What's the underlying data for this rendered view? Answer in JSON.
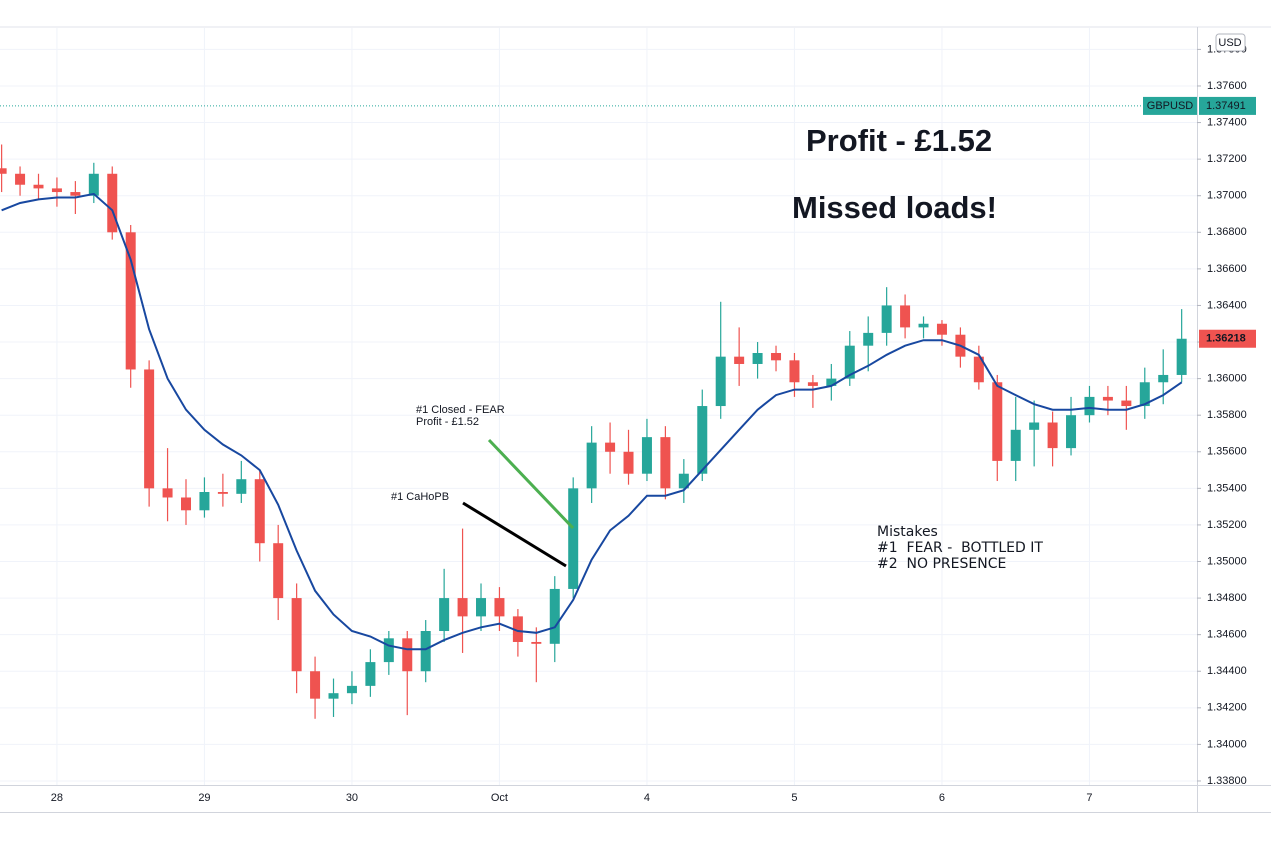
{
  "chart_data": {
    "type": "candlestick",
    "x": [
      -0.375,
      -0.25,
      -0.125,
      0,
      0.125,
      0.25,
      0.375,
      0.5,
      0.625,
      0.75,
      0.875,
      1,
      1.125,
      1.25,
      1.375,
      1.5,
      1.625,
      1.75,
      1.875,
      2,
      2.125,
      2.25,
      2.375,
      2.5,
      2.625,
      2.75,
      2.875,
      3,
      3.125,
      3.25,
      3.375,
      3.5,
      3.625,
      3.75,
      3.875,
      4,
      4.125,
      4.25,
      4.375,
      4.5,
      4.625,
      4.75,
      4.875,
      5,
      5.125,
      5.25,
      5.375,
      5.5,
      5.625,
      5.75,
      5.875,
      6,
      6.125,
      6.25,
      6.375,
      6.5,
      6.625,
      6.75,
      6.875,
      7,
      7.125,
      7.25,
      7.375,
      7.5,
      7.625
    ],
    "xlim": [
      -0.386,
      7.729
    ],
    "xticks": [
      {
        "value": 0,
        "label": "28"
      },
      {
        "value": 1,
        "label": "29"
      },
      {
        "value": 2,
        "label": "30"
      },
      {
        "value": 3,
        "label": "Oct"
      },
      {
        "value": 4,
        "label": "4"
      },
      {
        "value": 5,
        "label": "5"
      },
      {
        "value": 6,
        "label": "6"
      },
      {
        "value": 7,
        "label": "7"
      }
    ],
    "candles": {
      "open": [
        1.3715,
        1.3712,
        1.3706,
        1.3704,
        1.3702,
        1.37,
        1.3712,
        1.368,
        1.3605,
        1.354,
        1.3535,
        1.3528,
        1.3538,
        1.3537,
        1.3545,
        1.351,
        1.348,
        1.344,
        1.3425,
        1.3428,
        1.3432,
        1.3445,
        1.3458,
        1.344,
        1.3462,
        1.348,
        1.347,
        1.348,
        1.347,
        1.3456,
        1.3455,
        1.3485,
        1.354,
        1.3565,
        1.356,
        1.3548,
        1.3568,
        1.354,
        1.3548,
        1.3585,
        1.3612,
        1.3608,
        1.3614,
        1.361,
        1.3598,
        1.3596,
        1.36,
        1.3618,
        1.3625,
        1.364,
        1.3628,
        1.363,
        1.3624,
        1.3612,
        1.3598,
        1.3555,
        1.3572,
        1.3576,
        1.3562,
        1.358,
        1.359,
        1.3588,
        1.3585,
        1.3598,
        1.3602
      ],
      "high": [
        1.3728,
        1.3716,
        1.3712,
        1.371,
        1.3708,
        1.3718,
        1.3716,
        1.3684,
        1.361,
        1.3562,
        1.3545,
        1.3546,
        1.3548,
        1.3555,
        1.355,
        1.352,
        1.3488,
        1.3448,
        1.3436,
        1.344,
        1.3452,
        1.3462,
        1.3462,
        1.3468,
        1.3496,
        1.3518,
        1.3488,
        1.3486,
        1.3474,
        1.3464,
        1.3492,
        1.3546,
        1.3574,
        1.3576,
        1.3572,
        1.3578,
        1.3574,
        1.3556,
        1.3594,
        1.3642,
        1.3628,
        1.362,
        1.3618,
        1.3614,
        1.3602,
        1.3608,
        1.3626,
        1.3634,
        1.365,
        1.3646,
        1.3634,
        1.3632,
        1.3628,
        1.3618,
        1.3602,
        1.359,
        1.3588,
        1.3582,
        1.359,
        1.3596,
        1.3596,
        1.3596,
        1.3606,
        1.3616,
        1.3638
      ],
      "low": [
        1.3702,
        1.37,
        1.3698,
        1.3694,
        1.369,
        1.3696,
        1.3676,
        1.3595,
        1.353,
        1.3522,
        1.352,
        1.3524,
        1.353,
        1.3532,
        1.35,
        1.3468,
        1.3428,
        1.3414,
        1.3415,
        1.3422,
        1.3426,
        1.3438,
        1.3416,
        1.3434,
        1.3456,
        1.345,
        1.3462,
        1.3462,
        1.3448,
        1.3434,
        1.3445,
        1.348,
        1.3532,
        1.3548,
        1.3542,
        1.3544,
        1.3534,
        1.3532,
        1.3544,
        1.3578,
        1.3596,
        1.36,
        1.3604,
        1.359,
        1.3584,
        1.3588,
        1.3596,
        1.3604,
        1.3618,
        1.3622,
        1.3622,
        1.3618,
        1.3606,
        1.3594,
        1.3544,
        1.3544,
        1.3552,
        1.3552,
        1.3558,
        1.3576,
        1.358,
        1.3572,
        1.3578,
        1.3586,
        1.3598
      ],
      "close": [
        1.3712,
        1.3706,
        1.3704,
        1.3702,
        1.37,
        1.3712,
        1.368,
        1.3605,
        1.354,
        1.3535,
        1.3528,
        1.3538,
        1.3537,
        1.3545,
        1.351,
        1.348,
        1.344,
        1.3425,
        1.3428,
        1.3432,
        1.3445,
        1.3458,
        1.344,
        1.3462,
        1.348,
        1.347,
        1.348,
        1.347,
        1.3456,
        1.3455,
        1.3485,
        1.354,
        1.3565,
        1.356,
        1.3548,
        1.3568,
        1.354,
        1.3548,
        1.3585,
        1.3612,
        1.3608,
        1.3614,
        1.361,
        1.3598,
        1.3596,
        1.36,
        1.3618,
        1.3625,
        1.364,
        1.3628,
        1.363,
        1.3624,
        1.3612,
        1.3598,
        1.3555,
        1.3572,
        1.3576,
        1.3562,
        1.358,
        1.359,
        1.3588,
        1.3585,
        1.3598,
        1.3602,
        1.36218
      ],
      "up_color": "#26a69a",
      "down_color": "#ef5350"
    },
    "moving_average": {
      "color": "#1848a0",
      "values": [
        1.3692,
        1.3696,
        1.3698,
        1.3699,
        1.3699,
        1.3701,
        1.3692,
        1.3665,
        1.3627,
        1.36,
        1.3583,
        1.3572,
        1.3564,
        1.3558,
        1.355,
        1.3531,
        1.3506,
        1.3484,
        1.3471,
        1.3462,
        1.3459,
        1.3454,
        1.3452,
        1.3452,
        1.3457,
        1.3461,
        1.3464,
        1.3466,
        1.3462,
        1.3461,
        1.3464,
        1.3479,
        1.3501,
        1.3517,
        1.3525,
        1.3536,
        1.3536,
        1.3539,
        1.355,
        1.3561,
        1.3572,
        1.3583,
        1.3591,
        1.3594,
        1.3594,
        1.3596,
        1.3602,
        1.3607,
        1.3613,
        1.3618,
        1.3621,
        1.3621,
        1.3618,
        1.3613,
        1.3596,
        1.3591,
        1.3586,
        1.3583,
        1.3583,
        1.3584,
        1.3583,
        1.3583,
        1.3586,
        1.3591,
        1.3598
      ]
    },
    "reference_line": {
      "label": "GBPUSD",
      "value": 1.37491,
      "color": "#26a69a"
    },
    "currency": "USD",
    "ylim": [
      1.33778,
      1.37917
    ],
    "yticks": [
      {
        "value": 1.338,
        "label": "1.33800"
      },
      {
        "value": 1.34,
        "label": "1.34000"
      },
      {
        "value": 1.342,
        "label": "1.34200"
      },
      {
        "value": 1.344,
        "label": "1.34400"
      },
      {
        "value": 1.346,
        "label": "1.34600"
      },
      {
        "value": 1.348,
        "label": "1.34800"
      },
      {
        "value": 1.35,
        "label": "1.35000"
      },
      {
        "value": 1.352,
        "label": "1.35200"
      },
      {
        "value": 1.354,
        "label": "1.35400"
      },
      {
        "value": 1.356,
        "label": "1.35600"
      },
      {
        "value": 1.358,
        "label": "1.35800"
      },
      {
        "value": 1.36,
        "label": "1.36000"
      },
      {
        "value": 1.362,
        "label": "1.36200"
      },
      {
        "value": 1.364,
        "label": "1.36400"
      },
      {
        "value": 1.366,
        "label": "1.36600"
      },
      {
        "value": 1.368,
        "label": "1.36800"
      },
      {
        "value": 1.37,
        "label": "1.37000"
      },
      {
        "value": 1.372,
        "label": "1.37200"
      },
      {
        "value": 1.374,
        "label": "1.37400"
      },
      {
        "value": 1.376,
        "label": "1.37600"
      },
      {
        "value": 1.378,
        "label": "1.37800"
      }
    ],
    "grid": true,
    "annotations": [
      {
        "text": "Profit - £1.52",
        "color": "#4caf50"
      },
      {
        "text": "Missed loads!",
        "color": "#f23645"
      },
      {
        "text": "#1 Closed - FEAR",
        "color": "#4caf50"
      },
      {
        "text": "Profit - £1.52",
        "color": "#4caf50"
      },
      {
        "text": "#1 CaHoPB",
        "color": "#131722"
      },
      {
        "text": "Mistakes",
        "color": "#131722"
      },
      {
        "text": "#1  FEAR -  BOTTLED IT",
        "color": "#131722"
      },
      {
        "text": "#2  NO PRESENCE",
        "color": "#131722"
      }
    ]
  }
}
